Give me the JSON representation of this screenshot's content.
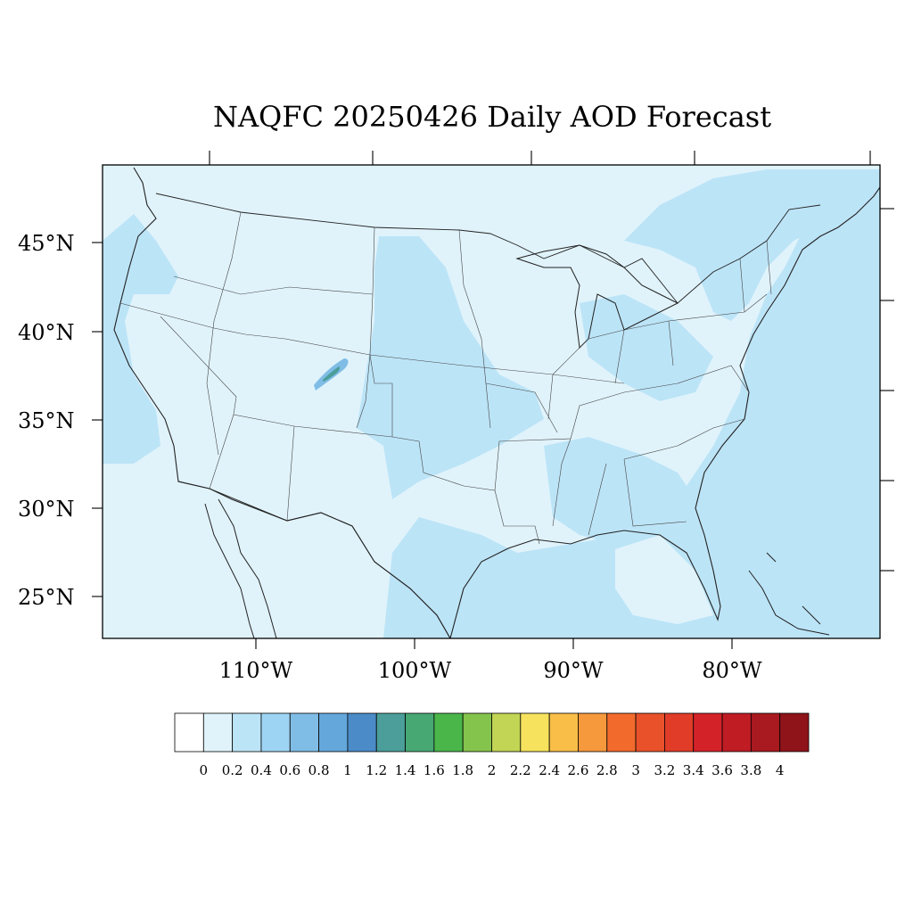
{
  "title": "NAQFC 20250426 Daily AOD Forecast",
  "map": {
    "projection": "lambert-conformal",
    "region": "Contiguous United States",
    "features": [
      "coastlines",
      "state-boundaries",
      "country-boundaries"
    ],
    "field": "Aerosol Optical Depth",
    "dominant_values": "0.1–0.4",
    "highlight": "small 1.0–1.4 plume over Colorado"
  },
  "axes": {
    "lat_labels": [
      "45°N",
      "40°N",
      "35°N",
      "30°N",
      "25°N"
    ],
    "lon_labels": [
      "110°W",
      "100°W",
      "90°W",
      "80°W"
    ]
  },
  "colorbar": {
    "levels": [
      "0",
      "0.2",
      "0.4",
      "0.6",
      "0.8",
      "1",
      "1.2",
      "1.4",
      "1.6",
      "1.8",
      "2",
      "2.2",
      "2.4",
      "2.6",
      "2.8",
      "3",
      "3.2",
      "3.4",
      "3.6",
      "3.8",
      "4"
    ],
    "colors": [
      "#ffffff",
      "#e0f3fb",
      "#bce4f7",
      "#9dd4f3",
      "#7fbde6",
      "#64a7db",
      "#4b8bc8",
      "#4b9e9a",
      "#48a874",
      "#4ab64a",
      "#85c44c",
      "#c2d554",
      "#f6e25d",
      "#f8be47",
      "#f6983c",
      "#f26b2d",
      "#e9512a",
      "#e03c28",
      "#d42229",
      "#bf1c24",
      "#a81a1f",
      "#8e141a"
    ]
  }
}
